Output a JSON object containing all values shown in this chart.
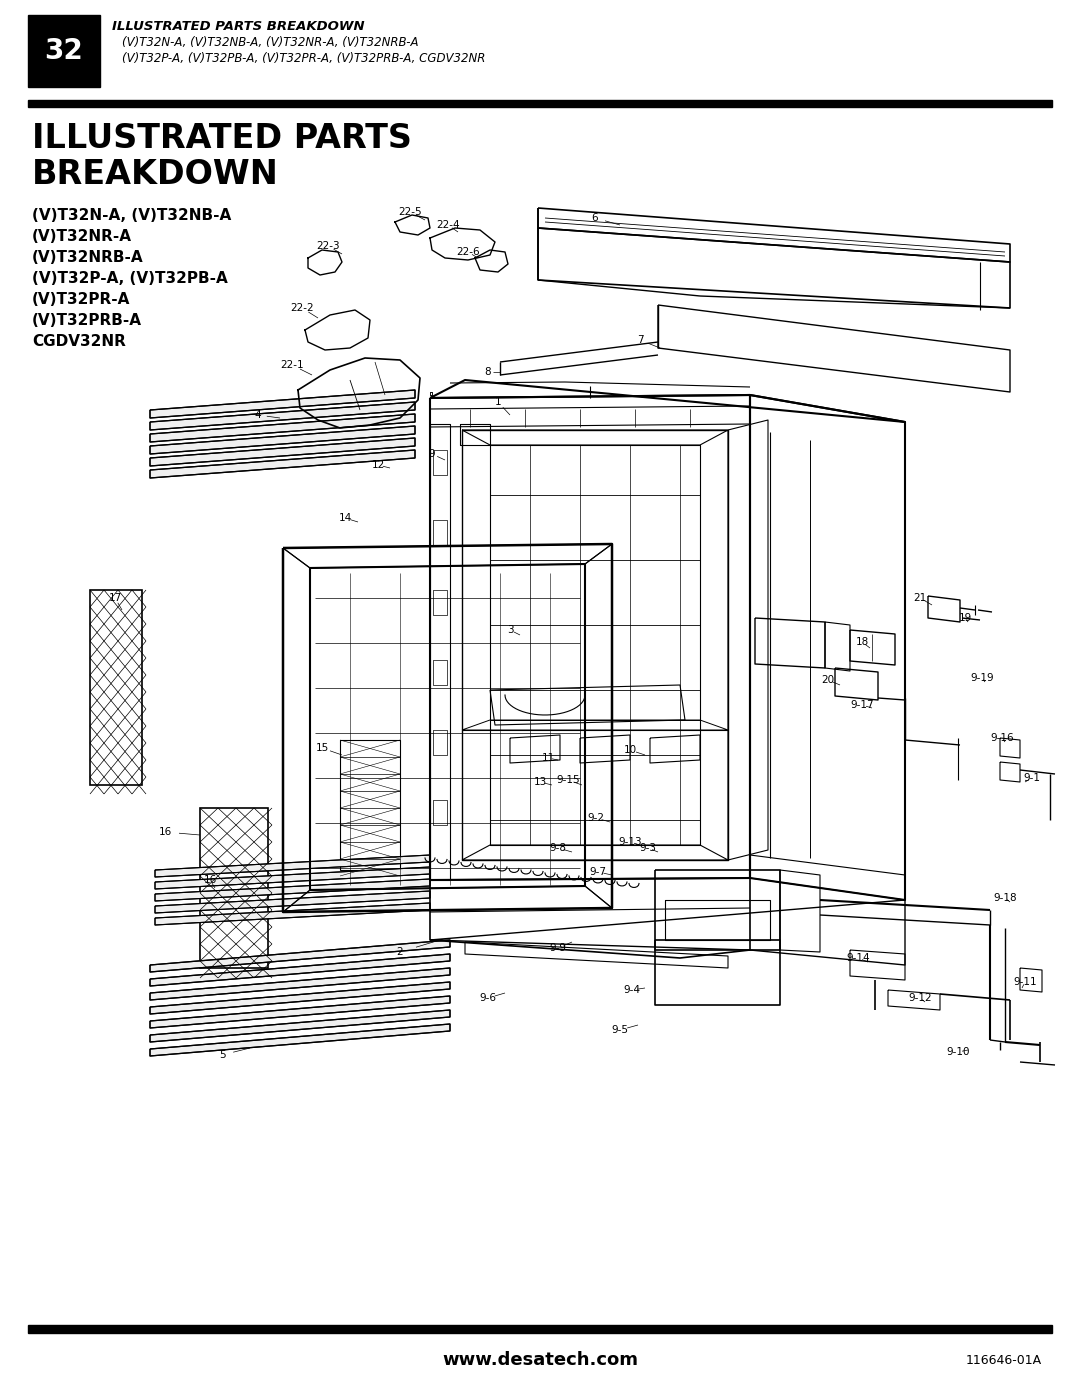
{
  "page_number": "32",
  "header_line1": "ILLUSTRATED PARTS BREAKDOWN",
  "header_line2": "(V)T32N-A, (V)T32NB-A, (V)T32NR-A, (V)T32NRB-A",
  "header_line3": "(V)T32P-A, (V)T32PB-A, (V)T32PR-A, (V)T32PRB-A, CGDV32NR",
  "title_line1": "ILLUSTRATED PARTS",
  "title_line2": "BREAKDOWN",
  "model_lines": [
    "(V)T32N-A, (V)T32NB-A",
    "(V)T32NR-A",
    "(V)T32NRB-A",
    "(V)T32P-A, (V)T32PB-A",
    "(V)T32PR-A",
    "(V)T32PRB-A",
    "CGDV32NR"
  ],
  "footer_url": "www.desatech.com",
  "footer_code": "116646-01A",
  "bg_color": "#ffffff",
  "text_color": "#000000"
}
